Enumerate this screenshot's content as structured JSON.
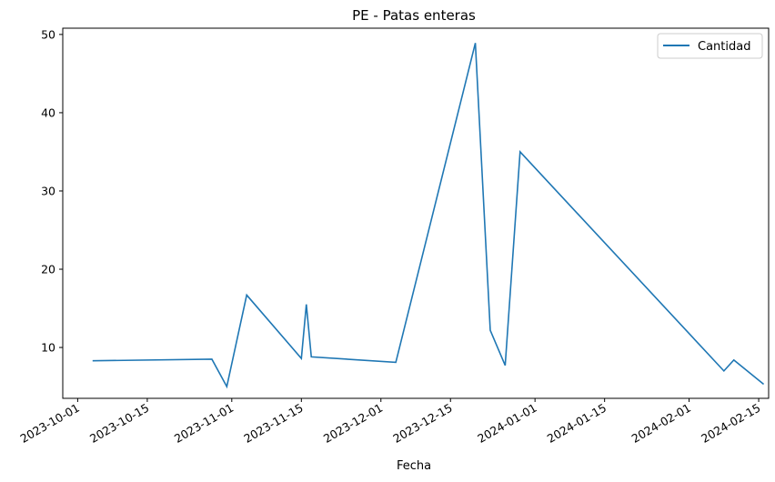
{
  "chart_data": {
    "type": "line",
    "title": "PE - Patas enteras",
    "xlabel": "Fecha",
    "ylabel": "",
    "x_tick_labels": [
      "2023-10-01",
      "2023-10-15",
      "2023-11-01",
      "2023-11-15",
      "2023-12-01",
      "2023-12-15",
      "2024-01-01",
      "2024-01-15",
      "2024-02-01",
      "2024-02-15"
    ],
    "y_tick_labels": [
      "10",
      "20",
      "30",
      "40",
      "50"
    ],
    "ylim": [
      3.5,
      50.8
    ],
    "xlim": [
      "2023-09-28",
      "2024-02-17"
    ],
    "grid": false,
    "legend_position": "top-right",
    "series": [
      {
        "name": "Cantidad",
        "color": "#1f77b4",
        "points": [
          {
            "x": "2023-10-04",
            "y": 8.3
          },
          {
            "x": "2023-10-28",
            "y": 8.5
          },
          {
            "x": "2023-10-31",
            "y": 5.0
          },
          {
            "x": "2023-11-04",
            "y": 16.7
          },
          {
            "x": "2023-11-15",
            "y": 8.6
          },
          {
            "x": "2023-11-16",
            "y": 15.5
          },
          {
            "x": "2023-11-17",
            "y": 8.8
          },
          {
            "x": "2023-12-04",
            "y": 8.1
          },
          {
            "x": "2023-12-20",
            "y": 48.9
          },
          {
            "x": "2023-12-23",
            "y": 12.2
          },
          {
            "x": "2023-12-26",
            "y": 7.7
          },
          {
            "x": "2023-12-29",
            "y": 35.0
          },
          {
            "x": "2024-02-08",
            "y": 7.0
          },
          {
            "x": "2024-02-10",
            "y": 8.4
          },
          {
            "x": "2024-02-16",
            "y": 5.3
          }
        ]
      }
    ]
  }
}
